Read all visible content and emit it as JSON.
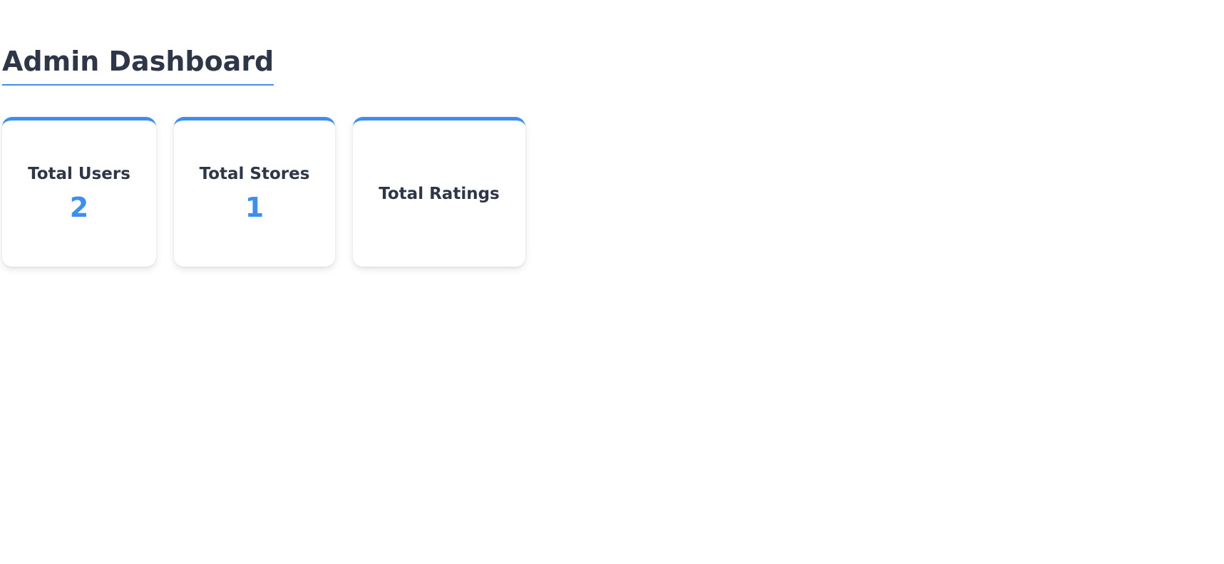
{
  "page": {
    "title": "Admin Dashboard"
  },
  "stats": [
    {
      "label": "Total Users",
      "value": "2"
    },
    {
      "label": "Total Stores",
      "value": "1"
    },
    {
      "label": "Total Ratings",
      "value": ""
    }
  ],
  "colors": {
    "accent": "#3b8ef3",
    "text": "#2d3748",
    "background": "#ffffff"
  }
}
